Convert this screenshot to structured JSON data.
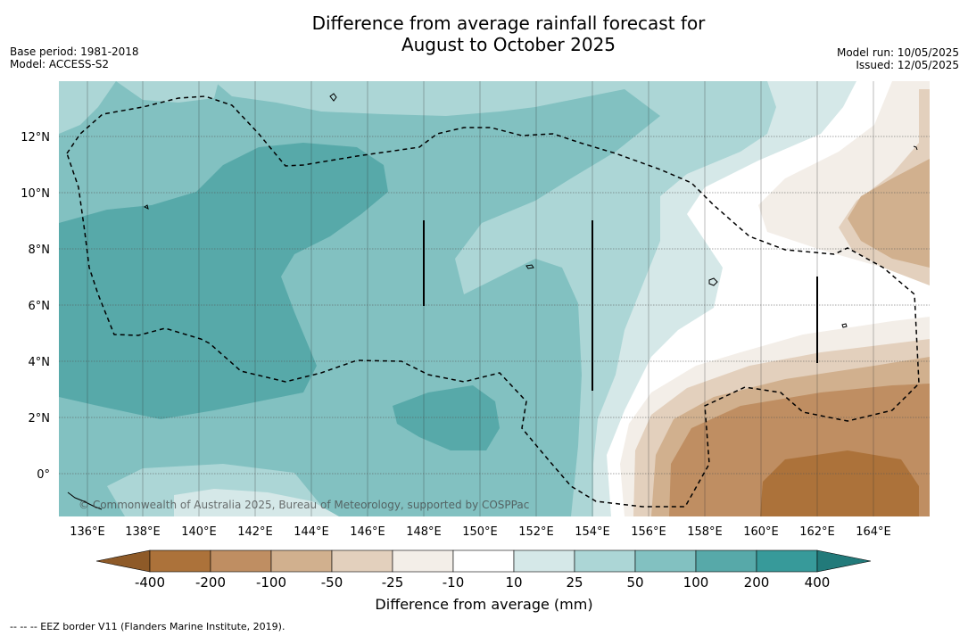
{
  "title_line1": "Difference from average rainfall forecast for",
  "title_line2": "August to October 2025",
  "base_period": "Base period: 1981-2018",
  "model": "Model: ACCESS-S2",
  "model_run": "Model run: 10/05/2025",
  "issued": "Issued: 12/05/2025",
  "copyright": "© Commonwealth of Australia 2025, Bureau of Meteorology, supported by COSPPac",
  "lon_labels": [
    "136°E",
    "138°E",
    "140°E",
    "142°E",
    "144°E",
    "146°E",
    "148°E",
    "150°E",
    "152°E",
    "154°E",
    "156°E",
    "158°E",
    "160°E",
    "162°E",
    "164°E"
  ],
  "lat_labels": [
    "12°N",
    "10°N",
    "8°N",
    "6°N",
    "4°N",
    "2°N",
    "0°"
  ],
  "colorbar": {
    "label": "Difference from average (mm)",
    "ticks": [
      "-400",
      "-200",
      "-100",
      "-50",
      "-25",
      "-10",
      "10",
      "25",
      "50",
      "100",
      "200",
      "400"
    ],
    "colors": [
      "#8e5a28",
      "#ac723a",
      "#bf8e62",
      "#d1b08e",
      "#e3d0bd",
      "#f3eee8",
      "#ffffff",
      "#d5e8e8",
      "#acd6d6",
      "#82c1c1",
      "#57a9a9",
      "#379a9a",
      "#227a7a"
    ]
  },
  "footnote": "--  --  -- EEZ border V11 (Flanders Marine Institute, 2019)."
}
